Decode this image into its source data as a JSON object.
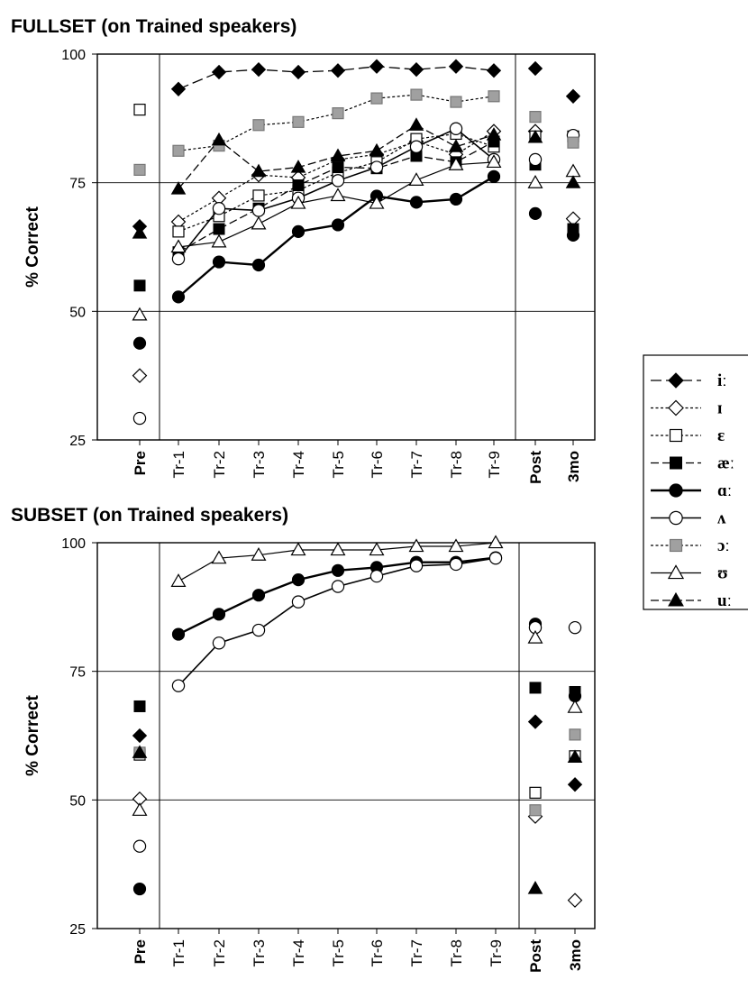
{
  "chart_data": [
    {
      "type": "line",
      "title": "FULLSET (on Trained speakers)",
      "xlabel": "",
      "ylabel": "% Correct",
      "ylim": [
        25,
        100
      ],
      "yticks": [
        25,
        50,
        75,
        100
      ],
      "categories": [
        "Pre",
        "Tr-1",
        "Tr-2",
        "Tr-3",
        "Tr-4",
        "Tr-5",
        "Tr-6",
        "Tr-7",
        "Tr-8",
        "Tr-9",
        "Post",
        "3mo"
      ],
      "grid": "horizontal lines at 50 and 75",
      "legend_position": "right",
      "series": [
        {
          "name": "iː",
          "marker": "diamond",
          "fill": "black",
          "line": "long-dash",
          "stroke_width": 1.3,
          "values": [
            66.5,
            93.2,
            96.5,
            97,
            96.5,
            96.8,
            97.6,
            97,
            97.6,
            96.8,
            97.2,
            91.8
          ]
        },
        {
          "name": "ɪ",
          "marker": "diamond",
          "fill": "white",
          "line": "dotted",
          "stroke_width": 1.2,
          "values": [
            37.5,
            67.4,
            72,
            76.5,
            76,
            79.5,
            80.5,
            83,
            80.5,
            85,
            85,
            68
          ]
        },
        {
          "name": "ɛ",
          "marker": "square",
          "fill": "white",
          "line": "dotted",
          "stroke_width": 1.2,
          "values": [
            89.2,
            65.5,
            68.5,
            72.5,
            73.5,
            77,
            79,
            83.5,
            84.5,
            82,
            84,
            84
          ]
        },
        {
          "name": "æː",
          "marker": "square",
          "fill": "black",
          "line": "dash",
          "stroke_width": 1.3,
          "values": [
            55,
            61.5,
            66,
            70,
            74.5,
            78,
            77.8,
            80.2,
            79,
            83,
            78.5,
            66
          ]
        },
        {
          "name": "ɑː",
          "marker": "circle",
          "fill": "black",
          "line": "solid",
          "stroke_width": 2.4,
          "values": [
            43.8,
            52.8,
            59.6,
            59,
            65.5,
            66.8,
            72.4,
            71.2,
            71.8,
            76.2,
            69,
            64.8
          ]
        },
        {
          "name": "ʌ",
          "marker": "circle",
          "fill": "white",
          "line": "solid",
          "stroke_width": 1.6,
          "values": [
            29.2,
            60.2,
            70,
            69.6,
            72,
            75.4,
            78,
            82,
            85.5,
            79.5,
            79.5,
            84.2
          ]
        },
        {
          "name": "ɔː",
          "marker": "square",
          "fill": "gray",
          "line": "dotted",
          "stroke_width": 1.2,
          "values": [
            77.5,
            81.2,
            82.2,
            86.2,
            86.8,
            88.5,
            91.4,
            92.1,
            90.7,
            91.8,
            87.8,
            82.8
          ]
        },
        {
          "name": "ʊ",
          "marker": "triangle",
          "fill": "white",
          "line": "solid",
          "stroke_width": 1.2,
          "values": [
            49.3,
            62.5,
            63.5,
            67,
            71,
            72.5,
            71,
            75.5,
            78.5,
            79,
            75,
            77.2
          ]
        },
        {
          "name": "uː",
          "marker": "triangle",
          "fill": "black",
          "line": "dash",
          "stroke_width": 1.3,
          "values": [
            65.2,
            73.8,
            83.3,
            77.2,
            78,
            80.2,
            81.2,
            86.2,
            82,
            84.3,
            83.8,
            75
          ]
        }
      ]
    },
    {
      "type": "line",
      "title": "SUBSET (on Trained speakers)",
      "xlabel": "",
      "ylabel": "% Correct",
      "ylim": [
        25,
        100
      ],
      "yticks": [
        25,
        50,
        75,
        100
      ],
      "categories": [
        "Pre",
        "Tr-1",
        "Tr-2",
        "Tr-3",
        "Tr-4",
        "Tr-5",
        "Tr-6",
        "Tr-7",
        "Tr-8",
        "Tr-9",
        "Post",
        "3mo"
      ],
      "grid": "horizontal lines at 50 and 75",
      "series": [
        {
          "name": "iː",
          "marker": "diamond",
          "fill": "black",
          "line": "none",
          "values": [
            62.5,
            null,
            null,
            null,
            null,
            null,
            null,
            null,
            null,
            null,
            65.2,
            53
          ]
        },
        {
          "name": "ɪ",
          "marker": "diamond",
          "fill": "white",
          "line": "none",
          "values": [
            50.2,
            null,
            null,
            null,
            null,
            null,
            null,
            null,
            null,
            null,
            46.8,
            30.5
          ]
        },
        {
          "name": "ɛ",
          "marker": "square",
          "fill": "white",
          "line": "none",
          "values": [
            58.8,
            null,
            null,
            null,
            null,
            null,
            null,
            null,
            null,
            null,
            51.4,
            58.5
          ]
        },
        {
          "name": "æː",
          "marker": "square",
          "fill": "black",
          "line": "none",
          "values": [
            68.2,
            null,
            null,
            null,
            null,
            null,
            null,
            null,
            null,
            null,
            71.8,
            71
          ]
        },
        {
          "name": "ɑː",
          "marker": "circle",
          "fill": "black",
          "line": "solid",
          "stroke_width": 2.4,
          "values": [
            32.7,
            82.2,
            86.1,
            89.8,
            92.8,
            94.6,
            95.2,
            96.2,
            96.2,
            97.1,
            84.2,
            70.2
          ]
        },
        {
          "name": "ʌ",
          "marker": "circle",
          "fill": "white",
          "line": "solid",
          "stroke_width": 1.6,
          "values": [
            41,
            72.2,
            80.5,
            83,
            88.5,
            91.5,
            93.5,
            95.5,
            95.8,
            97,
            83.5,
            83.5
          ]
        },
        {
          "name": "ɔː",
          "marker": "square",
          "fill": "gray",
          "line": "none",
          "values": [
            59.2,
            null,
            null,
            null,
            null,
            null,
            null,
            null,
            null,
            null,
            48,
            62.7
          ]
        },
        {
          "name": "ʊ",
          "marker": "triangle",
          "fill": "white",
          "line": "solid",
          "stroke_width": 1.2,
          "values": [
            48,
            92.5,
            97,
            97.6,
            98.6,
            98.6,
            98.6,
            99.3,
            99.3,
            100,
            81.5,
            68
          ]
        },
        {
          "name": "uː",
          "marker": "triangle",
          "fill": "black",
          "line": "none",
          "values": [
            59.2,
            null,
            null,
            null,
            null,
            null,
            null,
            null,
            null,
            null,
            32.8,
            58.3
          ]
        }
      ]
    }
  ]
}
